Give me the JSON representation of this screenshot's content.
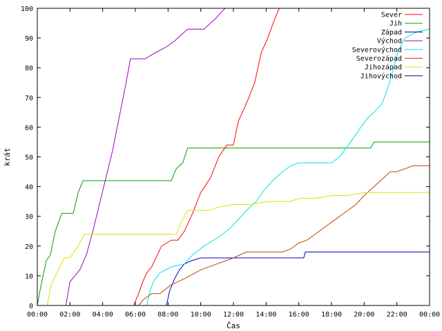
{
  "chart_data": {
    "type": "line",
    "xlabel": "Čas",
    "ylabel": "krát",
    "xlim": [
      0,
      24
    ],
    "ylim": [
      0,
      100
    ],
    "x_ticks": [
      "00:00",
      "02:00",
      "04:00",
      "06:00",
      "08:00",
      "10:00",
      "12:00",
      "14:00",
      "16:00",
      "18:00",
      "20:00",
      "22:00",
      "00:00"
    ],
    "y_ticks": [
      0,
      10,
      20,
      30,
      40,
      50,
      60,
      70,
      80,
      90,
      100
    ],
    "grid": false,
    "legend_position": "top-right",
    "series": [
      {
        "name": "Sever",
        "color": "#ff0000",
        "x": [
          5.9,
          6.2,
          6.45,
          6.7,
          7.0,
          7.6,
          8.2,
          8.6,
          9.0,
          9.5,
          10.0,
          10.6,
          11.1,
          11.6,
          12.0,
          12.3,
          12.8,
          13.3,
          13.7,
          14.1,
          14.5,
          14.8
        ],
        "y": [
          0,
          4,
          8,
          11,
          13,
          20,
          22,
          22,
          25,
          31,
          38,
          43,
          50,
          54,
          54,
          62,
          68,
          75,
          85,
          90,
          96,
          100
        ]
      },
      {
        "name": "Jih",
        "color": "#00a000",
        "x": [
          0.0,
          0.2,
          0.35,
          0.55,
          0.8,
          1.1,
          1.5,
          2.2,
          2.5,
          2.8,
          3.0,
          5.0,
          8.2,
          8.5,
          8.9,
          9.2,
          9.5,
          12.0,
          17.0,
          20.4,
          20.6,
          24.0
        ],
        "y": [
          0,
          6,
          10,
          15,
          17,
          25,
          31,
          31,
          38,
          42,
          42,
          42,
          42,
          46,
          48,
          53,
          53,
          53,
          53,
          53,
          55,
          55
        ]
      },
      {
        "name": "Západ",
        "color": "#0000c0",
        "x": [
          7.9,
          8.1,
          8.4,
          8.7,
          9.0,
          9.4,
          10.0,
          12.0,
          14.0,
          16.3,
          16.4,
          18.0,
          20.0,
          24.0
        ],
        "y": [
          0,
          5,
          9,
          12,
          14,
          15,
          16,
          16,
          16,
          16,
          18,
          18,
          18,
          18
        ]
      },
      {
        "name": "Východ",
        "color": "#a000c0",
        "x": [
          1.75,
          2.0,
          2.3,
          2.6,
          3.0,
          3.4,
          3.8,
          4.2,
          4.6,
          5.0,
          5.4,
          5.7,
          6.0,
          6.6,
          7.2,
          7.9,
          8.4,
          8.8,
          9.2,
          10.2,
          10.6,
          11.0,
          11.3,
          11.5
        ],
        "y": [
          0,
          8,
          10,
          12,
          17,
          25,
          34,
          43,
          52,
          63,
          74,
          83,
          83,
          83,
          85,
          87,
          89,
          91,
          93,
          93,
          95,
          97,
          99,
          100
        ]
      },
      {
        "name": "Severovýchod",
        "color": "#00e0e0",
        "x": [
          6.7,
          6.85,
          7.1,
          7.5,
          8.2,
          9.0,
          9.5,
          10.2,
          11.1,
          11.8,
          12.3,
          12.8,
          13.4,
          13.9,
          14.4,
          15.0,
          15.5,
          16.0,
          17.0,
          18.0,
          18.5,
          18.9,
          19.3,
          19.8,
          20.2,
          20.6,
          21.1,
          21.5,
          21.8,
          22.1,
          22.5,
          23.2,
          24.0
        ],
        "y": [
          0,
          4,
          8,
          11,
          13,
          14,
          17,
          20,
          23,
          26,
          29,
          32,
          35,
          39,
          42,
          45,
          47,
          48,
          48,
          48,
          50,
          53,
          56,
          60,
          63,
          65,
          68,
          74,
          80,
          86,
          90,
          92,
          93
        ]
      },
      {
        "name": "Severozápad",
        "color": "#c04000",
        "x": [
          6.2,
          6.5,
          7.0,
          7.5,
          8.2,
          9.0,
          10.0,
          11.0,
          12.0,
          12.8,
          13.5,
          14.2,
          15.0,
          15.5,
          16.0,
          16.5,
          17.0,
          17.5,
          18.0,
          18.5,
          19.0,
          19.5,
          20.0,
          20.4,
          20.8,
          21.2,
          21.6,
          22.0,
          22.5,
          23.0,
          24.0
        ],
        "y": [
          0,
          2,
          4,
          4,
          7,
          9,
          12,
          14,
          16,
          18,
          18,
          18,
          18,
          19,
          21,
          22,
          24,
          26,
          28,
          30,
          32,
          34,
          37,
          39,
          41,
          43,
          45,
          45,
          46,
          47,
          47
        ]
      },
      {
        "name": "Jihozápad",
        "color": "#e0e000",
        "x": [
          0.6,
          0.85,
          1.3,
          1.65,
          2.0,
          2.5,
          2.9,
          3.5,
          5.0,
          7.0,
          8.5,
          8.8,
          9.2,
          10.0,
          10.5,
          11.0,
          12.0,
          13.0,
          14.1,
          15.5,
          16.0,
          17.0,
          18.0,
          19.0,
          20.0,
          24.0
        ],
        "y": [
          0,
          7,
          12,
          16,
          16,
          20,
          24,
          24,
          24,
          24,
          24,
          28,
          32,
          32,
          32,
          33,
          34,
          34,
          35,
          35,
          36,
          36,
          37,
          37,
          38,
          38
        ]
      },
      {
        "name": "Jihovýchod",
        "color": "#000080",
        "x": [],
        "y": []
      }
    ]
  }
}
